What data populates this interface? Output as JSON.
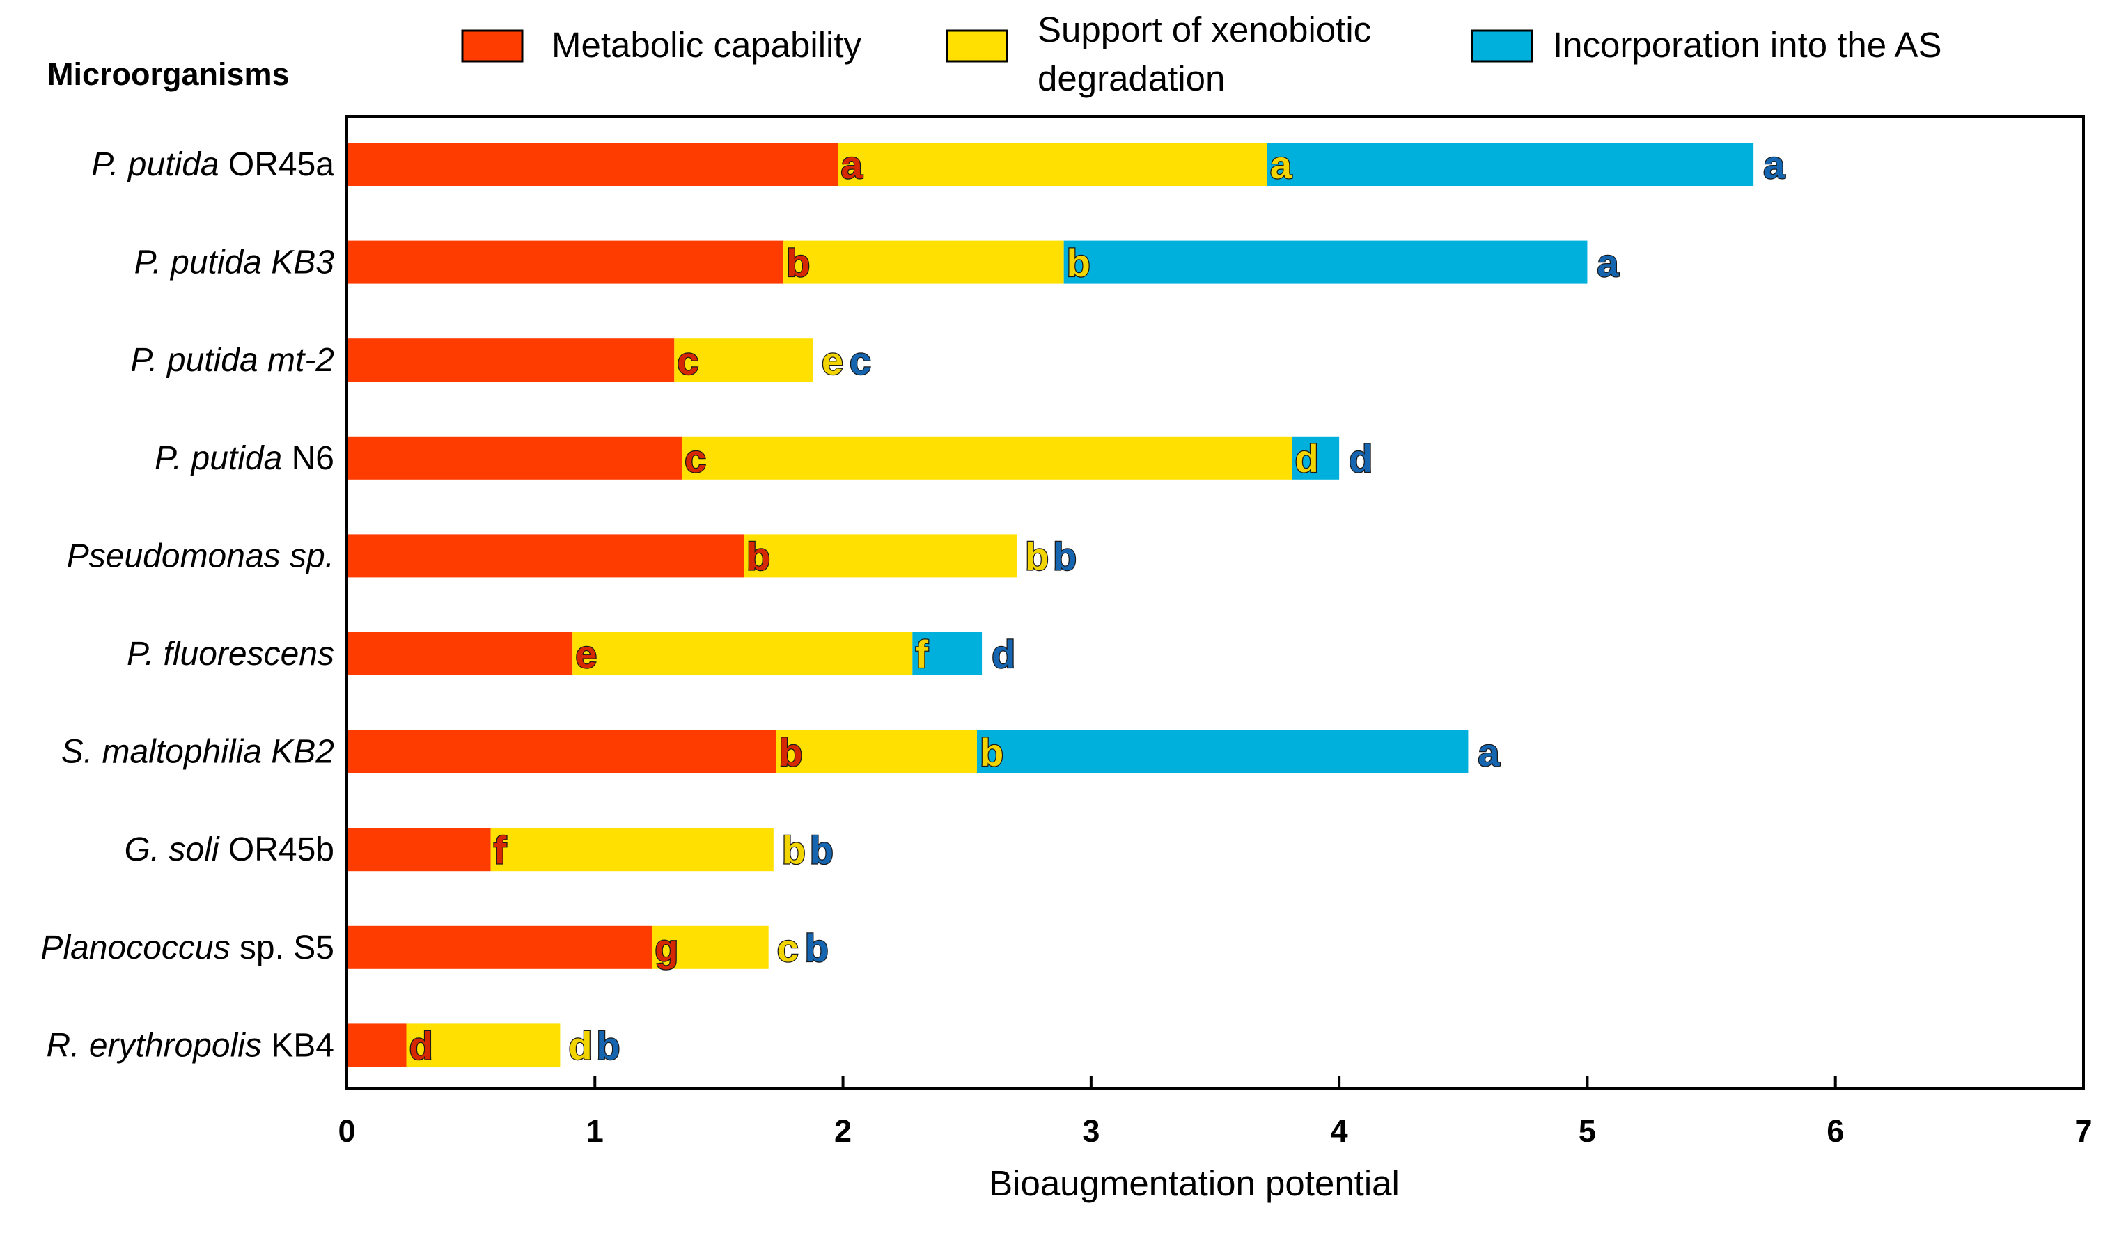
{
  "chart_data": {
    "type": "bar",
    "orientation": "horizontal",
    "stacked": true,
    "title": "",
    "categories_heading": "Microorganisms",
    "xlabel": "Bioaugmentation potential",
    "xlim": [
      0,
      7
    ],
    "xticks": [
      "0",
      "1",
      "2",
      "3",
      "4",
      "5",
      "6",
      "7"
    ],
    "grid": false,
    "legend_position": "top",
    "categories": [
      {
        "italic": "P. putida",
        "plain": " OR45a"
      },
      {
        "italic": "P. putida KB3",
        "plain": ""
      },
      {
        "italic": "P. putida mt-2",
        "plain": ""
      },
      {
        "italic": "P. putida",
        "plain": " N6"
      },
      {
        "italic": "Pseudomonas sp.",
        "plain": ""
      },
      {
        "italic": "P. fluorescens",
        "plain": ""
      },
      {
        "italic": "S. maltophilia KB2",
        "plain": ""
      },
      {
        "italic": "G. soli",
        "plain": " OR45b"
      },
      {
        "italic": "Planococcus",
        "plain": " sp. S5"
      },
      {
        "italic": "R. erythropolis",
        "plain": " KB4"
      }
    ],
    "series": [
      {
        "name": "Metabolic capability",
        "color": "#ff3c00",
        "label_color": "#d62800",
        "values": [
          1.98,
          1.76,
          1.32,
          1.35,
          1.6,
          0.91,
          1.73,
          0.58,
          1.23,
          0.24
        ],
        "letters": [
          "a",
          "b",
          "c",
          "c",
          "b",
          "e",
          "b",
          "f",
          "g",
          "d"
        ]
      },
      {
        "name": "Support of xenobiotic degradation",
        "name_lines": [
          "Support of xenobiotic",
          "degradation"
        ],
        "color": "#ffe000",
        "label_color": "#f2d400",
        "values": [
          1.73,
          1.13,
          0.56,
          2.46,
          1.1,
          1.37,
          0.81,
          1.14,
          0.47,
          0.62
        ],
        "letters": [
          "a",
          "b",
          "e",
          "d",
          "b",
          "f",
          "b",
          "b",
          "c",
          "d"
        ]
      },
      {
        "name": "Incorporation into the AS",
        "color": "#00b0dc",
        "label_color": "#1565b0",
        "values": [
          1.96,
          2.11,
          0.0,
          0.19,
          0.0,
          0.28,
          1.98,
          0.0,
          0.0,
          0.0
        ],
        "letters": [
          "a",
          "a",
          "c",
          "d",
          "b",
          "d",
          "a",
          "b",
          "b",
          "b"
        ]
      }
    ]
  }
}
